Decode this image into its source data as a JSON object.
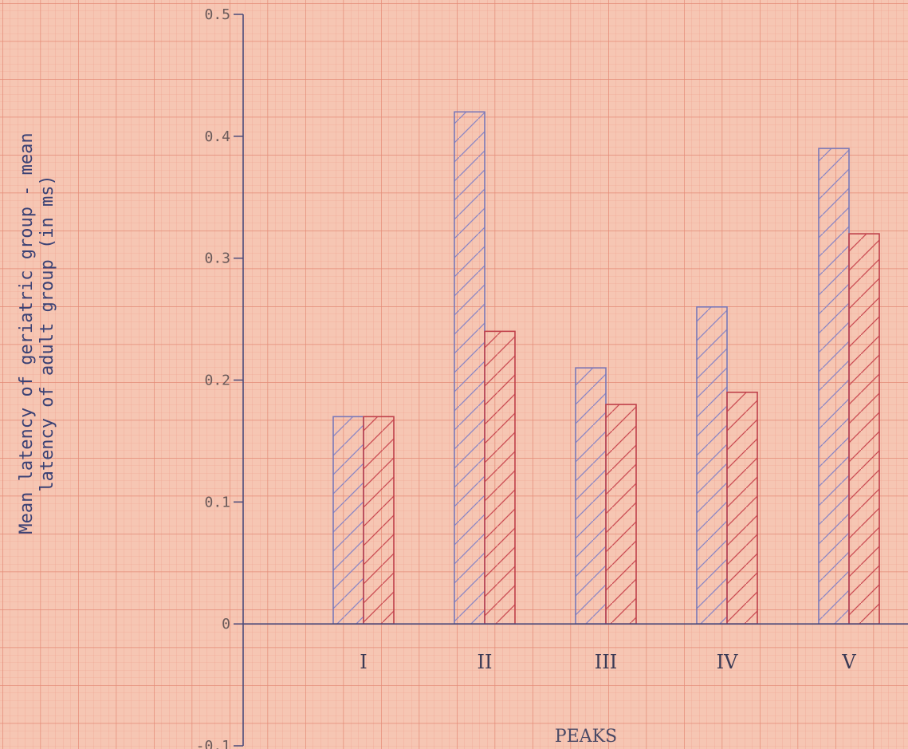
{
  "chart_data": {
    "type": "bar",
    "title": "",
    "xlabel": "PEAKS",
    "ylabel_lines": [
      "Mean latency of geriatric group - mean",
      "latency of adult group (in ms)"
    ],
    "categories": [
      "I",
      "II",
      "III",
      "IV",
      "V"
    ],
    "ylim": [
      -0.1,
      0.5
    ],
    "yticks": [
      {
        "value": 0.5,
        "label": "0.5"
      },
      {
        "value": 0.4,
        "label": "0.4"
      },
      {
        "value": 0.3,
        "label": "0.3"
      },
      {
        "value": 0.2,
        "label": "0.2"
      },
      {
        "value": 0.1,
        "label": "0.1"
      },
      {
        "value": 0,
        "label": "0"
      },
      {
        "value": -0.1,
        "label": "-0.1"
      }
    ],
    "grid": true,
    "legend": "none",
    "series": [
      {
        "color": "#7a78b8",
        "values": [
          0.17,
          0.42,
          0.21,
          0.26,
          0.39
        ]
      },
      {
        "color": "#c0404a",
        "values": [
          0.17,
          0.24,
          0.18,
          0.19,
          0.32
        ]
      }
    ]
  }
}
